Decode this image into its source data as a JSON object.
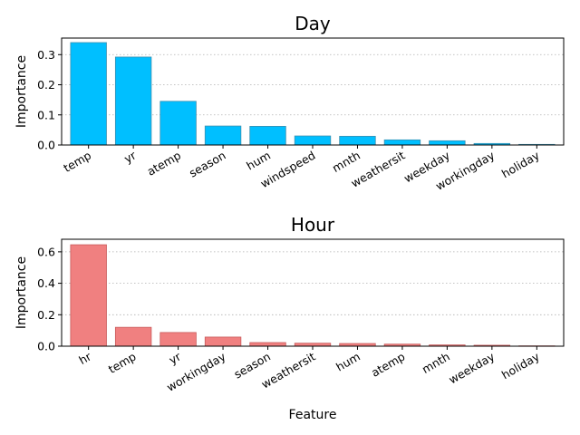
{
  "chart_data": [
    {
      "type": "bar",
      "title": "Day",
      "xlabel": "",
      "ylabel": "Importance",
      "categories": [
        "temp",
        "yr",
        "atemp",
        "season",
        "hum",
        "windspeed",
        "mnth",
        "weathersit",
        "weekday",
        "workingday",
        "holiday"
      ],
      "values": [
        0.34,
        0.292,
        0.145,
        0.063,
        0.062,
        0.03,
        0.029,
        0.017,
        0.014,
        0.005,
        0.002
      ],
      "ylim": [
        0,
        0.355
      ],
      "yticks": [
        "0.0",
        "0.1",
        "0.2",
        "0.3"
      ],
      "ytick_values": [
        0,
        0.1,
        0.2,
        0.3
      ],
      "grid": "y-dotted",
      "bar_color": "#00bfff",
      "edge_color": "#3a8fb0"
    },
    {
      "type": "bar",
      "title": "Hour",
      "xlabel": "Feature",
      "ylabel": "Importance",
      "categories": [
        "hr",
        "temp",
        "yr",
        "workingday",
        "season",
        "weathersit",
        "hum",
        "atemp",
        "mnth",
        "weekday",
        "holiday"
      ],
      "values": [
        0.645,
        0.12,
        0.087,
        0.058,
        0.023,
        0.019,
        0.017,
        0.013,
        0.008,
        0.006,
        0.002
      ],
      "ylim": [
        0,
        0.68
      ],
      "yticks": [
        "0.0",
        "0.2",
        "0.4",
        "0.6"
      ],
      "ytick_values": [
        0,
        0.2,
        0.4,
        0.6
      ],
      "grid": "y-dotted",
      "bar_color": "#f08080",
      "edge_color": "#c85a5a"
    }
  ]
}
